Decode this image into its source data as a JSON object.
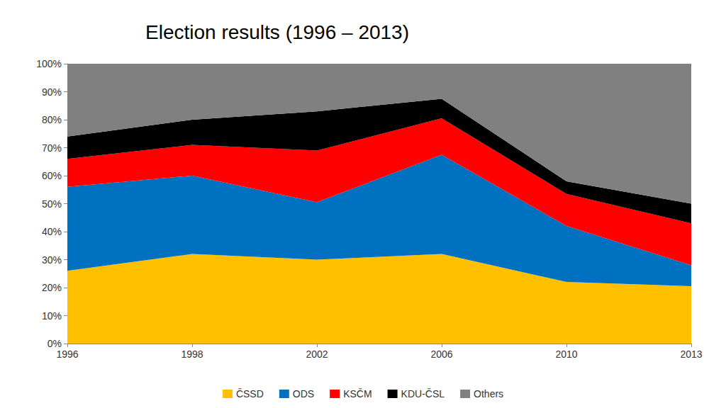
{
  "chart_data": {
    "type": "area",
    "title": "Election results (1996 – 2013)",
    "categories": [
      "1996",
      "1998",
      "2002",
      "2006",
      "2010",
      "2013"
    ],
    "series": [
      {
        "name": "ČSSD",
        "color": "#ffc000",
        "values": [
          26,
          32,
          30,
          32,
          22,
          20.5
        ]
      },
      {
        "name": "ODS",
        "color": "#0070c0",
        "values": [
          30,
          28,
          20.5,
          35.5,
          20,
          7.5
        ]
      },
      {
        "name": "KSČM",
        "color": "#ff0000",
        "values": [
          10,
          11,
          18.5,
          13,
          11.5,
          15
        ]
      },
      {
        "name": "KDU-ČSL",
        "color": "#000000",
        "values": [
          8,
          9,
          14,
          7,
          4.5,
          7
        ]
      },
      {
        "name": "Others",
        "color": "#808080",
        "values": [
          26,
          20,
          17,
          12.5,
          42,
          50
        ]
      }
    ],
    "ylim": [
      0,
      100
    ],
    "yticks": [
      {
        "value": 0,
        "label": "0%"
      },
      {
        "value": 10,
        "label": "10%"
      },
      {
        "value": 20,
        "label": "20%"
      },
      {
        "value": 30,
        "label": "30%"
      },
      {
        "value": 40,
        "label": "40%"
      },
      {
        "value": 50,
        "label": "50%"
      },
      {
        "value": 60,
        "label": "60%"
      },
      {
        "value": 70,
        "label": "70%"
      },
      {
        "value": 80,
        "label": "80%"
      },
      {
        "value": 90,
        "label": "90%"
      },
      {
        "value": 100,
        "label": "100%"
      }
    ],
    "stacked": true,
    "grid": false,
    "legend": "bottom"
  }
}
